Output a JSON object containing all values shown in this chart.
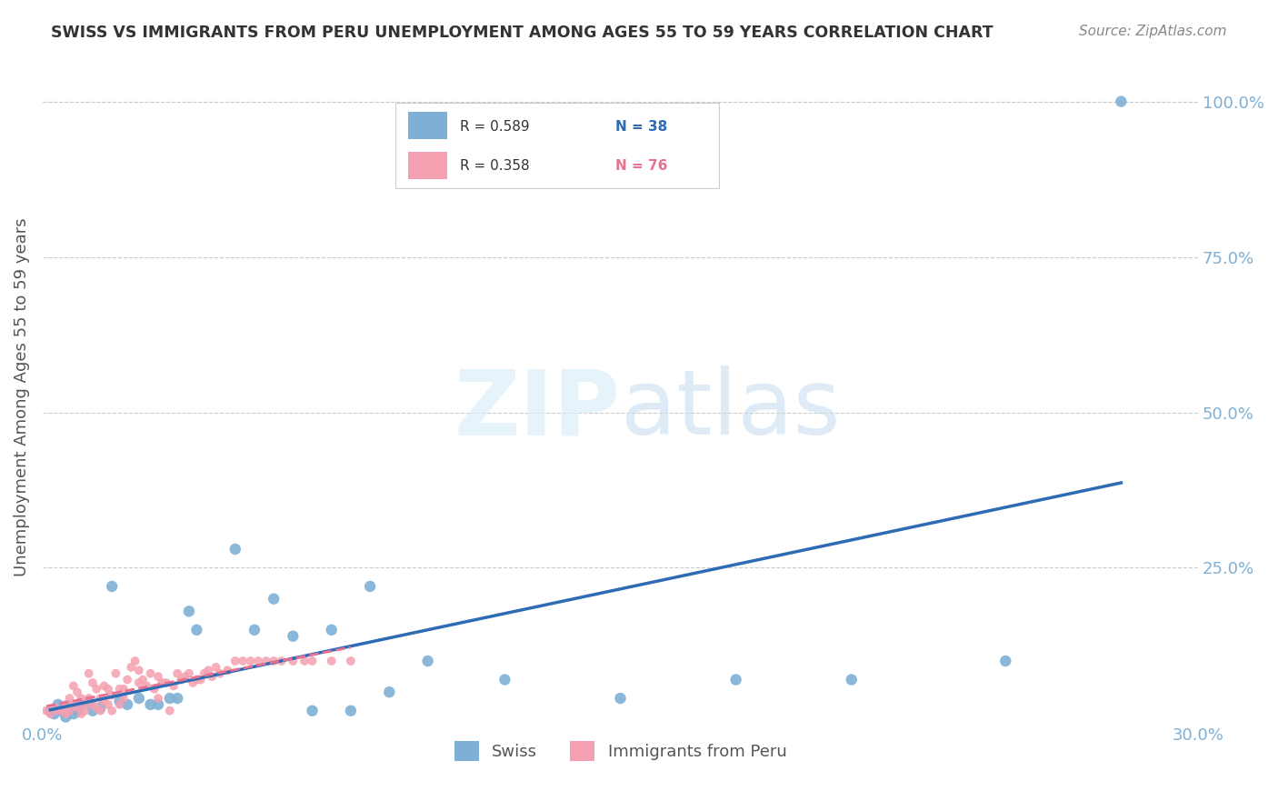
{
  "title": "SWISS VS IMMIGRANTS FROM PERU UNEMPLOYMENT AMONG AGES 55 TO 59 YEARS CORRELATION CHART",
  "source": "Source: ZipAtlas.com",
  "ylabel": "Unemployment Among Ages 55 to 59 years",
  "xlabel_ticks": [
    "0.0%",
    "30.0%"
  ],
  "ytick_labels": [
    "100.0%",
    "75.0%",
    "50.0%",
    "25.0%"
  ],
  "ytick_values": [
    1.0,
    0.75,
    0.5,
    0.25
  ],
  "xlim": [
    0.0,
    0.3
  ],
  "ylim": [
    0.0,
    1.05
  ],
  "swiss_color": "#7EB0D5",
  "peru_color": "#F5A0B0",
  "swiss_line_color": "#2D6BB5",
  "peru_line_color": "#E87090",
  "legend_swiss_R": "R = 0.589",
  "legend_swiss_N": "N = 38",
  "legend_peru_R": "R = 0.358",
  "legend_peru_N": "N = 76",
  "swiss_R": 0.589,
  "swiss_N": 38,
  "peru_R": 0.358,
  "peru_N": 76,
  "swiss_points_x": [
    0.002,
    0.003,
    0.004,
    0.005,
    0.006,
    0.007,
    0.008,
    0.009,
    0.01,
    0.012,
    0.013,
    0.015,
    0.018,
    0.02,
    0.022,
    0.025,
    0.028,
    0.03,
    0.033,
    0.035,
    0.038,
    0.04,
    0.05,
    0.055,
    0.06,
    0.065,
    0.07,
    0.075,
    0.08,
    0.085,
    0.09,
    0.1,
    0.12,
    0.15,
    0.18,
    0.21,
    0.25,
    0.28
  ],
  "swiss_points_y": [
    0.02,
    0.015,
    0.03,
    0.02,
    0.01,
    0.025,
    0.015,
    0.02,
    0.03,
    0.035,
    0.02,
    0.025,
    0.22,
    0.035,
    0.03,
    0.04,
    0.03,
    0.03,
    0.04,
    0.04,
    0.18,
    0.15,
    0.28,
    0.15,
    0.2,
    0.14,
    0.02,
    0.15,
    0.02,
    0.22,
    0.05,
    0.1,
    0.07,
    0.04,
    0.07,
    0.07,
    0.1,
    1.0
  ],
  "peru_points_x": [
    0.001,
    0.002,
    0.003,
    0.004,
    0.005,
    0.006,
    0.006,
    0.007,
    0.007,
    0.008,
    0.008,
    0.009,
    0.009,
    0.01,
    0.01,
    0.011,
    0.011,
    0.012,
    0.012,
    0.013,
    0.013,
    0.014,
    0.014,
    0.015,
    0.015,
    0.016,
    0.016,
    0.017,
    0.017,
    0.018,
    0.018,
    0.019,
    0.02,
    0.02,
    0.021,
    0.021,
    0.022,
    0.023,
    0.024,
    0.025,
    0.025,
    0.026,
    0.027,
    0.028,
    0.029,
    0.03,
    0.03,
    0.031,
    0.032,
    0.033,
    0.034,
    0.035,
    0.036,
    0.037,
    0.038,
    0.039,
    0.04,
    0.041,
    0.042,
    0.043,
    0.044,
    0.045,
    0.046,
    0.048,
    0.05,
    0.052,
    0.054,
    0.056,
    0.058,
    0.06,
    0.062,
    0.065,
    0.068,
    0.07,
    0.075,
    0.08
  ],
  "peru_points_y": [
    0.02,
    0.015,
    0.025,
    0.02,
    0.02,
    0.03,
    0.015,
    0.04,
    0.02,
    0.06,
    0.03,
    0.05,
    0.025,
    0.04,
    0.015,
    0.03,
    0.02,
    0.08,
    0.04,
    0.065,
    0.03,
    0.055,
    0.025,
    0.04,
    0.02,
    0.035,
    0.06,
    0.03,
    0.055,
    0.045,
    0.02,
    0.08,
    0.03,
    0.055,
    0.055,
    0.04,
    0.07,
    0.09,
    0.1,
    0.065,
    0.085,
    0.07,
    0.06,
    0.08,
    0.055,
    0.075,
    0.04,
    0.065,
    0.065,
    0.02,
    0.06,
    0.08,
    0.07,
    0.075,
    0.08,
    0.065,
    0.07,
    0.07,
    0.08,
    0.085,
    0.075,
    0.09,
    0.08,
    0.085,
    0.1,
    0.1,
    0.1,
    0.1,
    0.1,
    0.1,
    0.1,
    0.1,
    0.1,
    0.1,
    0.1,
    0.1
  ],
  "watermark_text": "ZIPatlas",
  "background_color": "#FFFFFF",
  "grid_color": "#CCCCCC",
  "title_color": "#333333",
  "axis_label_color": "#555555",
  "tick_label_color": "#7EB0D5",
  "right_tick_color": "#7EB0D5"
}
